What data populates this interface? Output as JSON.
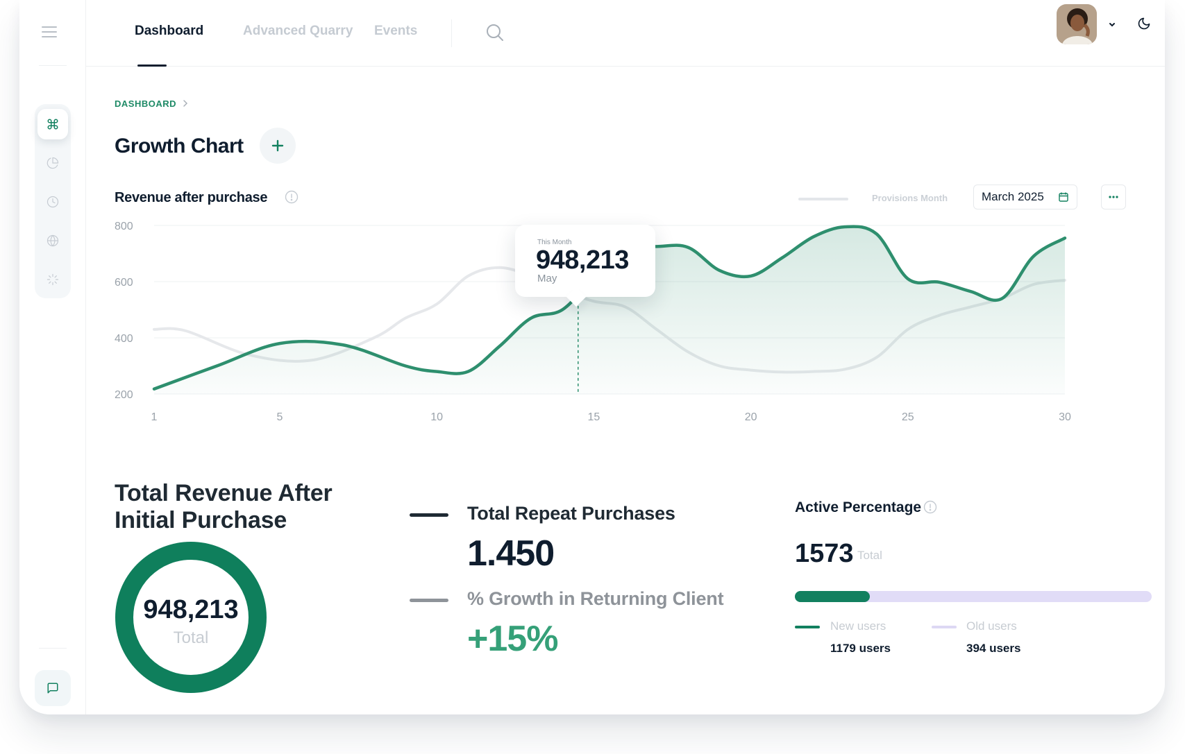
{
  "nav": {
    "tabs": [
      {
        "label": "Dashboard",
        "active": true
      },
      {
        "label": "Advanced Quarry",
        "active": false
      },
      {
        "label": "Events",
        "active": false
      }
    ]
  },
  "sidebar": {
    "icons": [
      "command-icon",
      "pie-chart-icon",
      "clock-icon",
      "globe-icon",
      "loader-icon"
    ],
    "bottom_icon": "chat-icon"
  },
  "header": {
    "icons": [
      "search-icon",
      "avatar",
      "chevron-down-icon",
      "moon-icon"
    ]
  },
  "breadcrumb": "DASHBOARD",
  "page_title": "Growth Chart",
  "chart_section": {
    "title": "Revenue after purchase",
    "legend_label": "Provisions Month",
    "month": "March 2025"
  },
  "tooltip": {
    "label": "This Month",
    "value": "948,213",
    "sub": "May"
  },
  "chart_data": {
    "type": "area",
    "x_ticks": [
      "1",
      "5",
      "10",
      "15",
      "20",
      "25",
      "30"
    ],
    "y_ticks": [
      "800",
      "600",
      "400",
      "200"
    ],
    "ylim": [
      200,
      800
    ],
    "xlim": [
      1,
      30
    ],
    "grid": true,
    "series": [
      {
        "name": "",
        "color": "#2e8f6e",
        "style": "area",
        "x": [
          1,
          3,
          5,
          7,
          9,
          10,
          11,
          12,
          13,
          14,
          15,
          16,
          17,
          18,
          19,
          20,
          21,
          22,
          23,
          24,
          25,
          26,
          27,
          28,
          29,
          30
        ],
        "y": [
          218,
          300,
          380,
          375,
          300,
          280,
          280,
          370,
          470,
          500,
          615,
          720,
          725,
          722,
          640,
          620,
          685,
          760,
          795,
          770,
          610,
          598,
          565,
          540,
          690,
          755
        ]
      },
      {
        "name": "Provisions Month",
        "color": "#e6e8eb",
        "style": "line",
        "x": [
          1,
          2,
          4,
          6,
          8,
          9,
          10,
          11,
          12,
          13,
          14,
          15,
          16,
          17,
          18,
          19,
          20,
          21,
          22,
          23,
          24,
          25,
          26,
          27,
          28,
          29,
          30
        ],
        "y": [
          430,
          425,
          340,
          320,
          400,
          470,
          520,
          620,
          650,
          620,
          570,
          530,
          510,
          430,
          350,
          300,
          285,
          278,
          280,
          288,
          330,
          430,
          480,
          510,
          540,
          590,
          605
        ]
      }
    ],
    "highlight": {
      "x": 14.5,
      "y": 573
    }
  },
  "revenue_card": {
    "title": "Total Revenue After Initial Purchase",
    "value": "948,213",
    "sub": "Total",
    "ring_color": "#0f7f5c"
  },
  "repeat": {
    "label": "Total Repeat Purchases",
    "value": "1.450",
    "line_color": "#1f2a33"
  },
  "growth": {
    "label": "% Growth in Returning Client",
    "value": "+15%",
    "line_color": "#8e9399",
    "value_color": "#35a078"
  },
  "active": {
    "title": "Active Percentage",
    "total": "1573",
    "total_label": "Total",
    "fill_percent": 21,
    "legend": [
      {
        "label": "New users",
        "value": "1179 users",
        "color": "#12805f"
      },
      {
        "label": "Old users",
        "value": "394 users",
        "color": "#ddd8f4"
      }
    ]
  }
}
